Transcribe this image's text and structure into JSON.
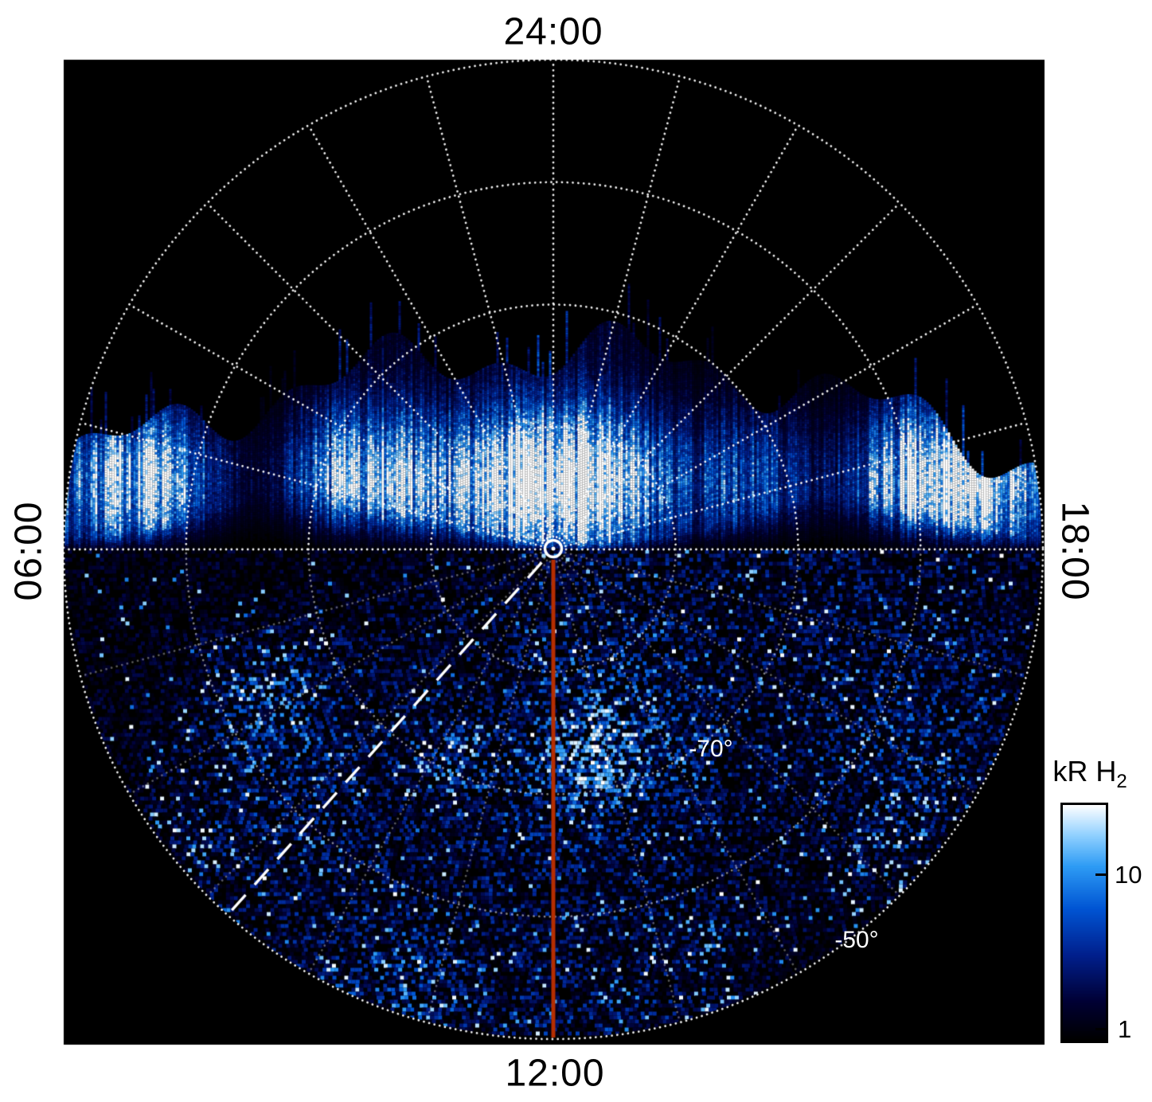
{
  "figure": {
    "time_labels": {
      "top": "24:00",
      "bottom": "12:00",
      "left": "06:00",
      "right": "18:00"
    },
    "latitude_labels": {
      "ring_70": "-70°",
      "ring_50": "-50°"
    },
    "colorbar": {
      "title_main": "kR H",
      "title_sub": "2",
      "tick_upper": "10",
      "tick_lower": "1"
    }
  },
  "chart_data": {
    "type": "heatmap",
    "projection": "polar-southern-hemisphere",
    "title": "",
    "angular_axis": {
      "quantity": "local time",
      "labels": [
        "24:00",
        "06:00",
        "12:00",
        "18:00"
      ],
      "label_positions": [
        "top",
        "left",
        "bottom",
        "right"
      ],
      "hour_line_spacing_deg": 15,
      "grid": "dotted white radial lines every hour"
    },
    "radial_axis": {
      "quantity": "latitude",
      "pole_deg": -90,
      "rings_deg": [
        -80,
        -70,
        -60,
        -50
      ],
      "labeled_rings": [
        "-70°",
        "-50°"
      ],
      "outer_ring_deg": -50
    },
    "colorbar": {
      "label": "kR H₂",
      "scale": "log",
      "tick_values": [
        10,
        1
      ],
      "range_kr": [
        1,
        30
      ],
      "orientation": "vertical",
      "top_color": "white",
      "bottom_color": "black"
    },
    "colormap": {
      "stops": [
        {
          "v": 0.0,
          "color": "#000000"
        },
        {
          "v": 0.16,
          "color": "#000033"
        },
        {
          "v": 0.36,
          "color": "#001f8c"
        },
        {
          "v": 0.56,
          "color": "#0055d4"
        },
        {
          "v": 0.74,
          "color": "#2e9cf5"
        },
        {
          "v": 0.87,
          "color": "#8fd0ff"
        },
        {
          "v": 1.0,
          "color": "#ffffff"
        }
      ]
    },
    "grid_style": {
      "color": "#ffffff",
      "line": "dotted"
    },
    "overlays": [
      {
        "name": "noon-midnight-meridian",
        "type": "line",
        "from": "pole",
        "to": "12:00 edge",
        "color": "#b52e00",
        "style": "solid"
      },
      {
        "name": "dashed-track-line",
        "type": "line",
        "from": "pole",
        "to": "~07:45 edge",
        "color": "#ffffff",
        "style": "dashed"
      },
      {
        "name": "pole-marker",
        "type": "circle-outline",
        "color": "#ffffff"
      }
    ],
    "features": [
      {
        "name": "main-auroral-band",
        "description": "Bright vertically-streaked H2 emission band (≈10–30+ kR) crossing the upper (nightside) half near -75° to -70° latitude, with white saturated patches left of center, at center, and on the right limb"
      },
      {
        "name": "diffuse-emission",
        "description": "Speckled low-level emission (≈1–10 kR) with sparse white specks filling the entire lower (dayside) half of the projection"
      },
      {
        "name": "no-data-sector",
        "description": "Black (no emission) sector poleward of the auroral band in the upper half of the plot"
      }
    ],
    "background": "#000000",
    "page_background": "#ffffff"
  }
}
